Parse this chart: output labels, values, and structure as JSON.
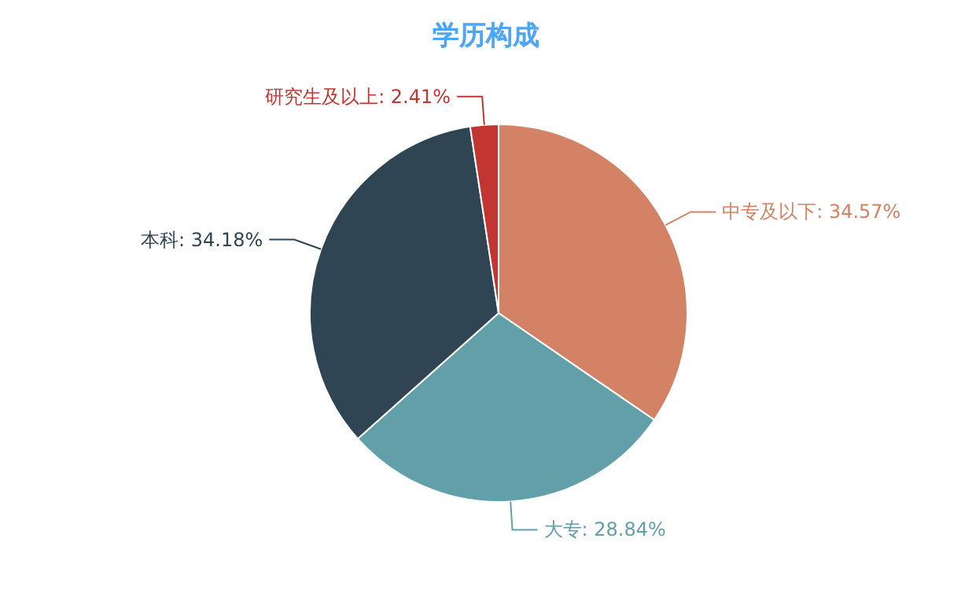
{
  "chart_data": {
    "type": "pie",
    "title": "学历构成",
    "categories": [
      "中专及以下",
      "大专",
      "本科",
      "研究生及以上"
    ],
    "values": [
      34.57,
      28.84,
      34.18,
      2.41
    ],
    "value_labels": [
      "34.57%",
      "28.84%",
      "34.18%",
      "2.41%"
    ],
    "colors": [
      "#d48265",
      "#61a0a8",
      "#2f4554",
      "#c23531"
    ]
  }
}
